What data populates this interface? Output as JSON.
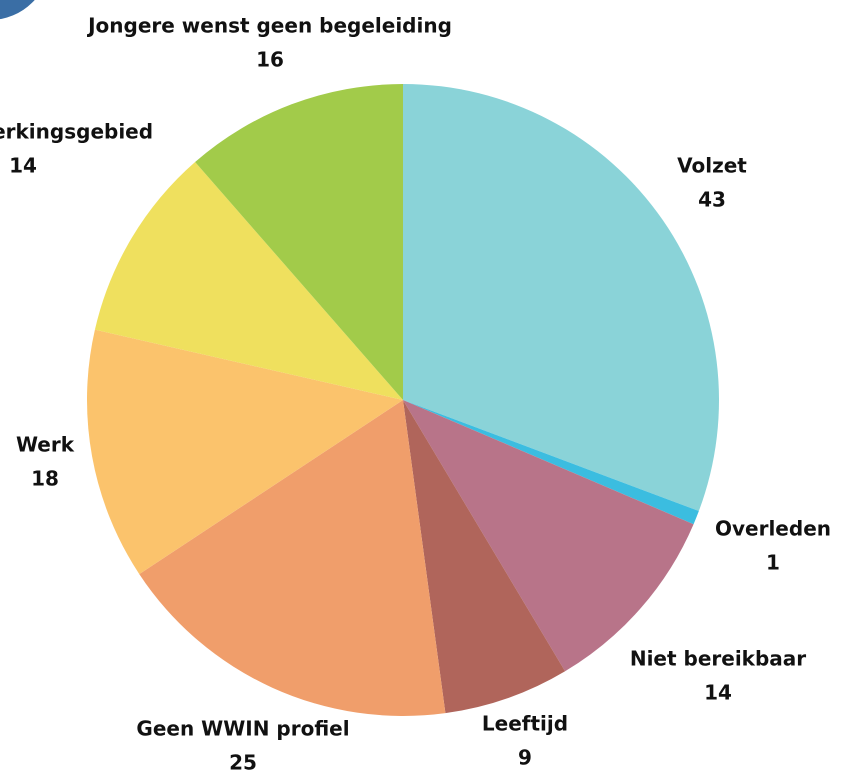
{
  "chart_data": {
    "type": "pie",
    "categories": [
      "Volzet",
      "Overleden",
      "Niet bereikbaar",
      "Leeftijd",
      "Geen WWIN profiel",
      "Werk",
      "Buiten werkingsgebied",
      "Jongere wenst geen begeleiding"
    ],
    "values": [
      43,
      1,
      14,
      9,
      25,
      18,
      14,
      16
    ],
    "colors": [
      "#8ad3d8",
      "#3bbde0",
      "#b87489",
      "#b0655b",
      "#f09e6b",
      "#fbc36c",
      "#efe05e",
      "#a2cb4a"
    ]
  }
}
